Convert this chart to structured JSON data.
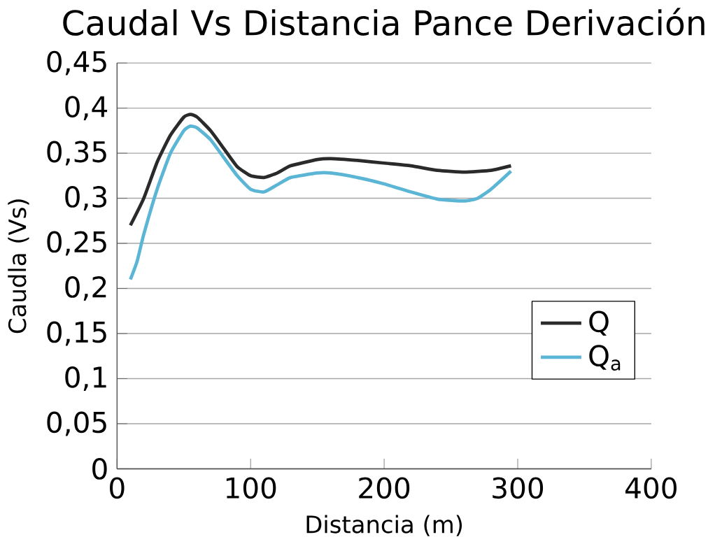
{
  "chart_data": {
    "type": "line",
    "title": "Caudal Vs Distancia Pance Derivación",
    "xlabel": "Distancia (m)",
    "ylabel": "Caudla (Vs)",
    "series": [
      {
        "name": "Q",
        "color": "#2a2a2a",
        "x": [
          10,
          20,
          30,
          40,
          50,
          55,
          60,
          70,
          80,
          90,
          100,
          110,
          120,
          130,
          150,
          160,
          180,
          200,
          220,
          240,
          260,
          280,
          295
        ],
        "values": [
          0.27,
          0.3,
          0.34,
          0.37,
          0.39,
          0.393,
          0.39,
          0.375,
          0.355,
          0.335,
          0.325,
          0.323,
          0.328,
          0.336,
          0.343,
          0.344,
          0.342,
          0.339,
          0.336,
          0.331,
          0.329,
          0.331,
          0.336
        ]
      },
      {
        "name": "Q$_{a}$",
        "color": "#5bb5d5",
        "x": [
          10,
          15,
          20,
          30,
          40,
          50,
          55,
          60,
          70,
          80,
          90,
          100,
          110,
          120,
          130,
          150,
          160,
          180,
          200,
          220,
          240,
          260,
          270,
          280,
          295
        ],
        "values": [
          0.21,
          0.23,
          0.26,
          0.31,
          0.35,
          0.375,
          0.38,
          0.378,
          0.365,
          0.345,
          0.325,
          0.31,
          0.307,
          0.315,
          0.323,
          0.328,
          0.328,
          0.323,
          0.316,
          0.307,
          0.299,
          0.297,
          0.3,
          0.31,
          0.33
        ]
      }
    ],
    "xlim": [
      0,
      400
    ],
    "xticks": [
      0,
      100,
      200,
      300,
      400
    ],
    "ylim": [
      0,
      0.45
    ],
    "yticks": [
      {
        "value": 0,
        "label": "0"
      },
      {
        "value": 0.05,
        "label": "0,05"
      },
      {
        "value": 0.1,
        "label": "0,1"
      },
      {
        "value": 0.15,
        "label": "0,15"
      },
      {
        "value": 0.2,
        "label": "0,2"
      },
      {
        "value": 0.25,
        "label": "0,25"
      },
      {
        "value": 0.3,
        "label": "0,3"
      },
      {
        "value": 0.35,
        "label": "0,35"
      },
      {
        "value": 0.4,
        "label": "0,4"
      },
      {
        "value": 0.45,
        "label": "0,45"
      }
    ],
    "grid": "y",
    "legend": "right",
    "marker": "none",
    "line_style": "solid"
  }
}
